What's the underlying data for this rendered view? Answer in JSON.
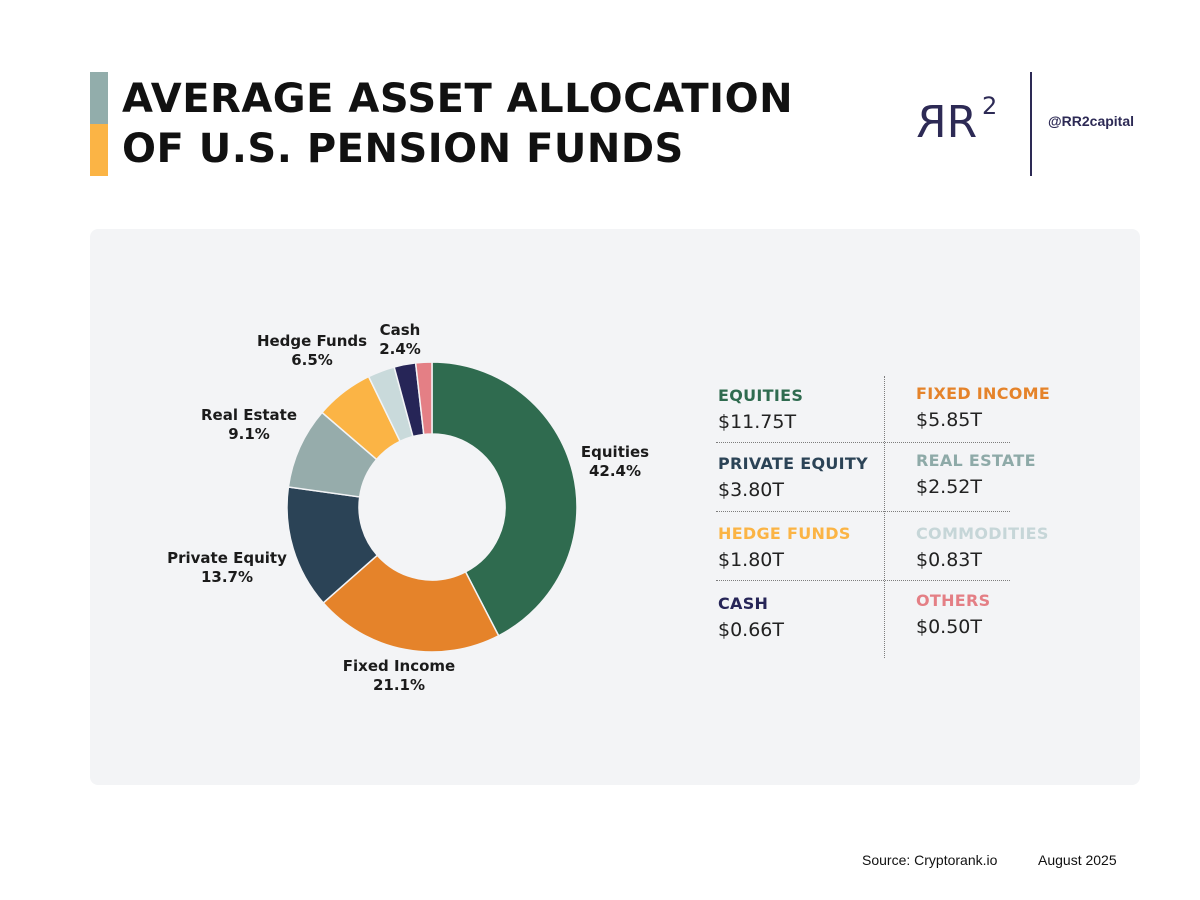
{
  "header": {
    "title_line1": "AVERAGE ASSET ALLOCATION",
    "title_line2": "OF U.S. PENSION FUNDS",
    "logo_text": "RR",
    "logo_superscript": "2",
    "handle": "@RR2capital",
    "bar_colors": [
      "#92adab",
      "#fbb445"
    ]
  },
  "chart_data": {
    "type": "pie",
    "style": "donut",
    "title": "AVERAGE ASSET ALLOCATION OF U.S. PENSION FUNDS",
    "unit": "%",
    "categories": [
      "Equities",
      "Fixed Income",
      "Private Equity",
      "Real Estate",
      "Hedge Funds",
      "Commodities",
      "Cash",
      "Others"
    ],
    "values": [
      42.4,
      21.1,
      13.7,
      9.1,
      6.5,
      3.0,
      2.4,
      1.8
    ],
    "colors": [
      "#2f6b4f",
      "#e5832a",
      "#2b4356",
      "#96acab",
      "#fbb445",
      "#c9dadb",
      "#262557",
      "#e47f85"
    ],
    "labels": [
      {
        "name": "Equities",
        "pct": "42.4%"
      },
      {
        "name": "Fixed Income",
        "pct": "21.1%"
      },
      {
        "name": "Private Equity",
        "pct": "13.7%"
      },
      {
        "name": "Real Estate",
        "pct": "9.1%"
      },
      {
        "name": "Hedge Funds",
        "pct": "6.5%"
      },
      {
        "name": "Cash",
        "pct": "2.4%"
      }
    ]
  },
  "legend": [
    {
      "name": "EQUITIES",
      "value": "$11.75T",
      "color": "#2f6b4f"
    },
    {
      "name": "FIXED INCOME",
      "value": "$5.85T",
      "color": "#e5832a"
    },
    {
      "name": "PRIVATE EQUITY",
      "value": "$3.80T",
      "color": "#2b4356"
    },
    {
      "name": "REAL ESTATE",
      "value": "$2.52T",
      "color": "#8eaaa8"
    },
    {
      "name": "HEDGE FUNDS",
      "value": "$1.80T",
      "color": "#fbb445"
    },
    {
      "name": "COMMODITIES",
      "value": "$0.83T",
      "color": "#c6d6d8"
    },
    {
      "name": "CASH",
      "value": "$0.66T",
      "color": "#262557"
    },
    {
      "name": "OTHERS",
      "value": "$0.50T",
      "color": "#e47f85"
    }
  ],
  "footer": {
    "source": "Source: Cryptorank.io",
    "date": "August 2025"
  }
}
